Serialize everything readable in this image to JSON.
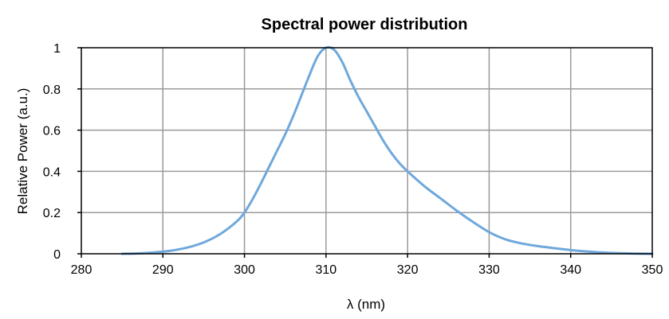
{
  "chart_data": {
    "type": "line",
    "title": "Spectral power distribution",
    "xlabel": "λ (nm)",
    "ylabel": "Relative  Power (a.u.)",
    "xlim": [
      280,
      350
    ],
    "ylim": [
      0,
      1
    ],
    "x_ticks": [
      "280",
      "290",
      "300",
      "310",
      "320",
      "330",
      "340",
      "350"
    ],
    "y_ticks": [
      "0",
      "0.2",
      "0.4",
      "0.6",
      "0.8",
      "1"
    ],
    "grid": true,
    "legend": "none",
    "series": [
      {
        "color": "#6fa8dc",
        "x": [
          285,
          287,
          289,
          291,
          293,
          295,
          297,
          299,
          300,
          301,
          302,
          303,
          304,
          305,
          306,
          307,
          308,
          309,
          310,
          311,
          312,
          313,
          314,
          315,
          316,
          317,
          318,
          319,
          320,
          322,
          324,
          326,
          328,
          330,
          332,
          334,
          336,
          338,
          340,
          342,
          344,
          346,
          348,
          350
        ],
        "y": [
          0,
          0.002,
          0.007,
          0.015,
          0.03,
          0.055,
          0.095,
          0.155,
          0.2,
          0.265,
          0.34,
          0.42,
          0.5,
          0.58,
          0.67,
          0.77,
          0.87,
          0.96,
          1.0,
          0.99,
          0.93,
          0.84,
          0.76,
          0.69,
          0.62,
          0.55,
          0.49,
          0.44,
          0.4,
          0.33,
          0.27,
          0.21,
          0.155,
          0.105,
          0.07,
          0.05,
          0.037,
          0.027,
          0.018,
          0.011,
          0.006,
          0.003,
          0.001,
          0
        ]
      }
    ]
  }
}
